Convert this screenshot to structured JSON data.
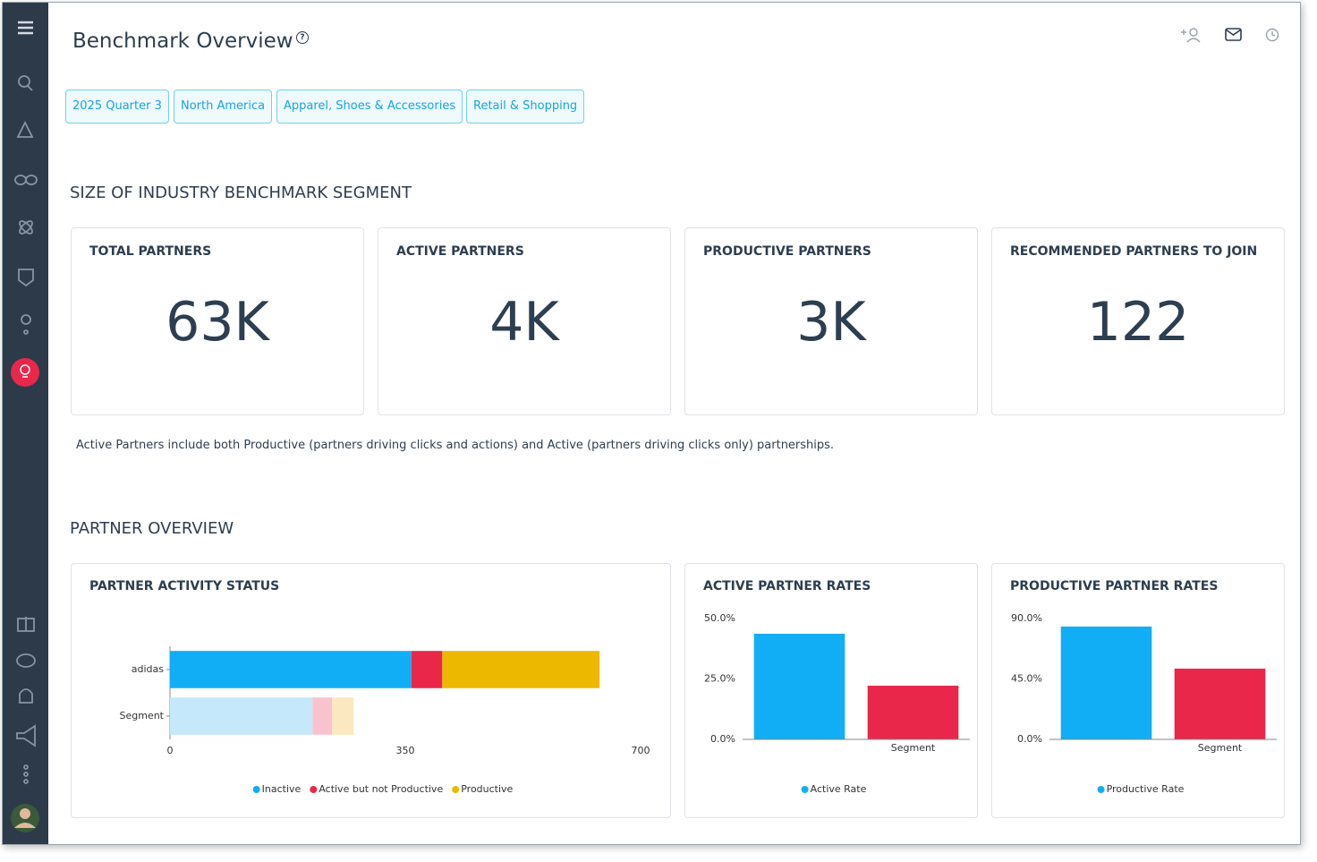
{
  "header": {
    "title": "Benchmark Overview",
    "help": "?"
  },
  "filters": [
    "2025 Quarter 3",
    "North America",
    "Apparel, Shoes & Accessories",
    "Retail & Shopping"
  ],
  "section1": {
    "title": "SIZE OF INDUSTRY BENCHMARK SEGMENT"
  },
  "cards": [
    {
      "label": "TOTAL PARTNERS",
      "value": "63K"
    },
    {
      "label": "ACTIVE PARTNERS",
      "value": "4K"
    },
    {
      "label": "PRODUCTIVE PARTNERS",
      "value": "3K"
    },
    {
      "label": "RECOMMENDED PARTNERS TO JOIN",
      "value": "122"
    }
  ],
  "note": "Active Partners include both Productive (partners driving clicks and actions) and Active (partners driving clicks only) partnerships.",
  "section2": {
    "title": "PARTNER OVERVIEW"
  },
  "chart_data": [
    {
      "type": "bar",
      "orientation": "horizontal",
      "stacked": true,
      "title": "PARTNER ACTIVITY STATUS",
      "categories": [
        "adidas",
        "Segment"
      ],
      "series": [
        {
          "name": "Inactive",
          "color": "#12aef5",
          "colors": [
            "#12aef5",
            "#c6e8fb"
          ],
          "values": [
            359,
            212
          ]
        },
        {
          "name": "Active but not Productive",
          "color": "#e8274b",
          "colors": [
            "#e8274b",
            "#f8c3cf"
          ],
          "values": [
            46,
            29
          ]
        },
        {
          "name": "Productive",
          "color": "#ecb800",
          "colors": [
            "#ecb800",
            "#fbe8c0"
          ],
          "values": [
            234,
            32
          ]
        }
      ],
      "xlim": [
        0,
        700
      ],
      "xticks": [
        0,
        350,
        700
      ]
    },
    {
      "type": "bar",
      "title": "ACTIVE PARTNER RATES",
      "categories": [
        null,
        "Segment"
      ],
      "series": [
        {
          "name": "Active Rate",
          "color": "#12aef5",
          "colors": [
            "#12aef5",
            "#e8274b"
          ],
          "values": [
            43.7,
            22.2
          ]
        }
      ],
      "ylim": [
        0,
        50
      ],
      "yticks": [
        {
          "value": 0,
          "label": "0.0%"
        },
        {
          "value": 25,
          "label": "25.0%"
        },
        {
          "value": 50,
          "label": "50.0%"
        }
      ]
    },
    {
      "type": "bar",
      "title": "PRODUCTIVE PARTNER RATES",
      "categories": [
        null,
        "Segment"
      ],
      "series": [
        {
          "name": "Productive Rate",
          "color": "#12aef5",
          "colors": [
            "#12aef5",
            "#e8274b"
          ],
          "values": [
            84,
            52.7
          ]
        }
      ],
      "ylim": [
        0,
        90
      ],
      "yticks": [
        {
          "value": 0,
          "label": "0.0%"
        },
        {
          "value": 45,
          "label": "45.0%"
        },
        {
          "value": 90,
          "label": "90.0%"
        }
      ]
    }
  ]
}
